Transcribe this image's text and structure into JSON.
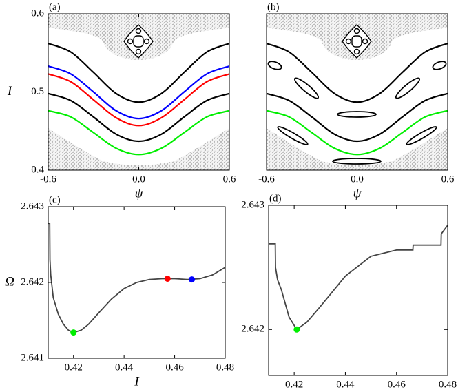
{
  "chart_data": [
    {
      "type": "line",
      "title": "(a)",
      "xlabel": "ψ",
      "ylabel": "I",
      "xlim": [
        -0.6,
        0.6
      ],
      "ylim": [
        0.4,
        0.6
      ],
      "xticks": [
        -0.6,
        {
          "value": 0,
          "label": "0.0"
        },
        0.6
      ],
      "yticks": [
        0.4,
        0.5,
        0.6
      ],
      "x": [
        -0.6,
        -0.45,
        -0.3,
        -0.15,
        0,
        0.15,
        0.3,
        0.45,
        0.6
      ],
      "series": [
        {
          "color": "#000000",
          "values": [
            0.562,
            0.551,
            0.525,
            0.498,
            0.487,
            0.498,
            0.525,
            0.551,
            0.562
          ]
        },
        {
          "color": "#0000ff",
          "values": [
            0.533,
            0.523,
            0.5,
            0.476,
            0.466,
            0.476,
            0.5,
            0.523,
            0.533
          ]
        },
        {
          "color": "#ff0000",
          "values": [
            0.523,
            0.513,
            0.49,
            0.467,
            0.457,
            0.467,
            0.49,
            0.513,
            0.523
          ]
        },
        {
          "color": "#000000",
          "values": [
            0.498,
            0.489,
            0.468,
            0.446,
            0.437,
            0.446,
            0.468,
            0.489,
            0.498
          ]
        },
        {
          "color": "#00ee00",
          "values": [
            0.476,
            0.468,
            0.448,
            0.428,
            0.42,
            0.428,
            0.448,
            0.468,
            0.476
          ]
        }
      ]
    },
    {
      "type": "line",
      "title": "(b)",
      "xlabel": "ψ",
      "xlim": [
        -0.6,
        0.6
      ],
      "ylim": [
        0.4,
        0.6
      ],
      "xticks": [
        -0.6,
        {
          "value": 0,
          "label": "0.0"
        },
        0.6
      ],
      "x": [
        -0.6,
        -0.45,
        -0.3,
        -0.15,
        0,
        0.15,
        0.3,
        0.45,
        0.6
      ],
      "series": [
        {
          "color": "#000000",
          "values": [
            0.562,
            0.551,
            0.525,
            0.498,
            0.487,
            0.498,
            0.525,
            0.551,
            0.562
          ]
        },
        {
          "color": "#000000",
          "values": [
            0.498,
            0.489,
            0.468,
            0.446,
            0.437,
            0.446,
            0.468,
            0.489,
            0.498
          ]
        },
        {
          "color": "#00ee00",
          "values": [
            0.476,
            0.468,
            0.448,
            0.428,
            0.42,
            0.428,
            0.448,
            0.468,
            0.476
          ]
        }
      ]
    },
    {
      "type": "line",
      "title": "(c)",
      "xlabel": "I",
      "ylabel": "Ω",
      "xlim": [
        0.41,
        0.48
      ],
      "ylim": [
        2.641,
        2.643
      ],
      "xticks": [
        0.42,
        0.44,
        0.46,
        0.48
      ],
      "yticks": [
        2.641,
        2.642,
        2.643
      ],
      "series": [
        {
          "color": "#444444",
          "x": [
            0.41,
            0.4106,
            0.4107,
            0.411,
            0.412,
            0.414,
            0.416,
            0.418,
            0.42,
            0.423,
            0.426,
            0.43,
            0.435,
            0.44,
            0.445,
            0.45,
            0.455,
            0.46,
            0.465,
            0.47,
            0.475,
            0.48
          ],
          "values": [
            2.64278,
            2.64278,
            2.6423,
            2.6421,
            2.6418,
            2.64158,
            2.64145,
            2.64137,
            2.64134,
            2.64137,
            2.64145,
            2.6416,
            2.64178,
            2.64192,
            2.642,
            2.64204,
            2.64205,
            2.64205,
            2.64204,
            2.64205,
            2.6421,
            2.6422
          ]
        }
      ],
      "markers": [
        {
          "color": "#00ee00",
          "x": 0.42,
          "y": 2.64134
        },
        {
          "color": "#ff0000",
          "x": 0.4572,
          "y": 2.64205
        },
        {
          "color": "#0000ff",
          "x": 0.4668,
          "y": 2.64204
        }
      ]
    },
    {
      "type": "line",
      "title": "(d)",
      "xlabel": "I",
      "xlim": [
        0.41,
        0.48
      ],
      "ylim": [
        2.64163,
        2.643
      ],
      "xticks": [
        0.42,
        0.44,
        0.46,
        0.48
      ],
      "yticks": [
        2.642,
        2.643
      ],
      "series": [
        {
          "color": "#444444",
          "x": [
            0.41,
            0.4126,
            0.4127,
            0.4135,
            0.415,
            0.418,
            0.421,
            0.425,
            0.43,
            0.44,
            0.45,
            0.46,
            0.4664,
            0.4665,
            0.4774,
            0.4775,
            0.48
          ],
          "values": [
            2.64269,
            2.64269,
            2.6425,
            2.6424,
            2.64232,
            2.6421,
            2.642,
            2.64206,
            2.64218,
            2.64243,
            2.64259,
            2.64264,
            2.64264,
            2.64268,
            2.64268,
            2.64277,
            2.64284
          ]
        }
      ],
      "markers": [
        {
          "color": "#00ee00",
          "x": 0.421,
          "y": 2.642
        }
      ]
    }
  ]
}
